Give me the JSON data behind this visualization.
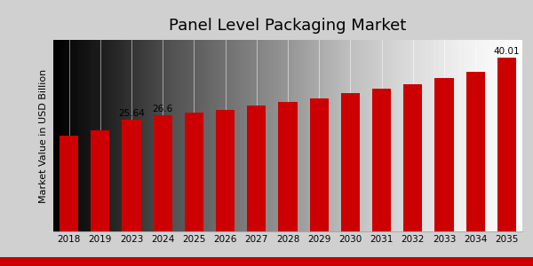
{
  "title": "Panel Level Packaging Market",
  "ylabel": "Market Value in USD Billion",
  "categories": [
    "2018",
    "2019",
    "2023",
    "2024",
    "2025",
    "2026",
    "2027",
    "2028",
    "2029",
    "2030",
    "2031",
    "2032",
    "2033",
    "2034",
    "2035"
  ],
  "values": [
    22.0,
    23.2,
    25.64,
    26.6,
    27.2,
    28.0,
    29.0,
    29.7,
    30.6,
    31.7,
    32.8,
    33.8,
    35.2,
    36.6,
    40.01
  ],
  "bar_color": "#cc0000",
  "labeled_bars": {
    "2023": "25.64",
    "2024": "26.6",
    "2035": "40.01"
  },
  "bg_color_left": "#c8c8c8",
  "bg_color_right": "#e8e8e8",
  "ylim": [
    0,
    44
  ],
  "title_fontsize": 13,
  "label_fontsize": 7.5,
  "tick_fontsize": 7.5,
  "ylabel_fontsize": 8,
  "bottom_bar_color": "#cc0000",
  "bottom_bar_height": 0.032
}
